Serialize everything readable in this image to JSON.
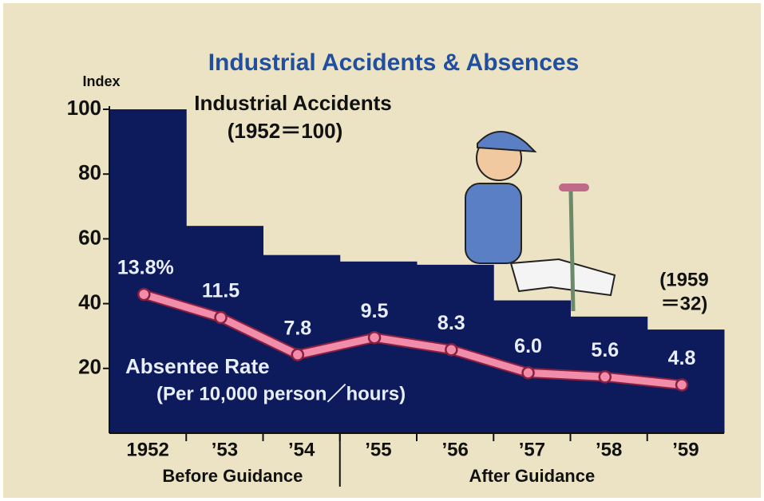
{
  "chart_data": {
    "type": "bar",
    "title": "Industrial Accidents & Absences",
    "y_label": "Index",
    "categories": [
      "1952",
      "’53",
      "’54",
      "’55",
      "’56",
      "’57",
      "’58",
      "’59"
    ],
    "groups": [
      "Before Guidance",
      "After Guidance"
    ],
    "ylim": [
      0,
      100
    ],
    "yticks": [
      20,
      40,
      60,
      80,
      100
    ],
    "series": [
      {
        "name": "Industrial Accidents",
        "unit": "(1952＝100)",
        "type": "bar",
        "color": "#0d1a5c",
        "values": [
          100,
          64,
          55,
          53,
          52,
          41,
          36,
          32
        ]
      },
      {
        "name": "Absentee Rate",
        "unit": "(Per 10,000 person／hours)",
        "type": "line",
        "color": "#f28cab",
        "values": [
          13.8,
          11.5,
          7.8,
          9.5,
          8.3,
          6.0,
          5.6,
          4.8
        ],
        "value_labels": [
          "13.8%",
          "11.5",
          "7.8",
          "9.5",
          "8.3",
          "6.0",
          "5.6",
          "4.8"
        ]
      }
    ],
    "annotation_lines": [
      "(1959",
      "＝32)"
    ]
  }
}
